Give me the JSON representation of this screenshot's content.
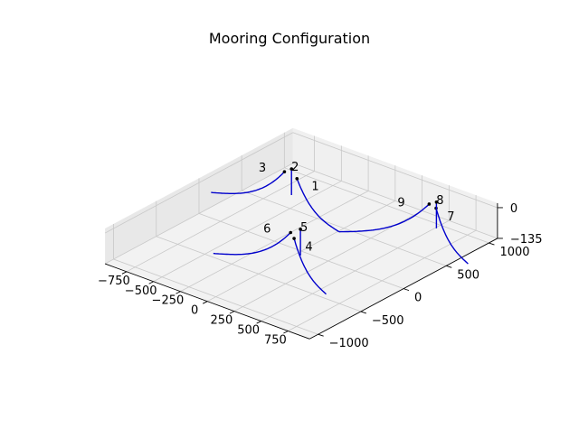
{
  "chart_data": {
    "type": "line",
    "projection": "3d",
    "title": "Mooring Configuration",
    "grid": true,
    "axes": {
      "x": {
        "ticks": [
          -750,
          -500,
          -250,
          0,
          250,
          500,
          750
        ],
        "tick_labels": [
          "−750",
          "−500",
          "−250",
          "0",
          "250",
          "500",
          "750"
        ]
      },
      "y": {
        "ticks": [
          -1000,
          -500,
          0,
          500,
          1000
        ],
        "tick_labels": [
          "−1000",
          "−500",
          "0",
          "500",
          "1000"
        ]
      },
      "z": {
        "ticks": [
          -135,
          0
        ],
        "tick_labels": [
          "−135",
          "0"
        ]
      }
    },
    "series": [
      {
        "label": "1",
        "color": "#0000cc",
        "fairlead": [
          -500,
          580,
          -20
        ],
        "anchor": [
          10,
          430,
          -135
        ]
      },
      {
        "label": "2",
        "color": "#0000cc",
        "fairlead": [
          -630,
          680,
          -20
        ],
        "anchor": [
          -630,
          680,
          -135
        ]
      },
      {
        "label": "3",
        "color": "#0000cc",
        "fairlead": [
          -640,
          610,
          -20
        ],
        "anchor": [
          -1100,
          330,
          -135
        ]
      },
      {
        "label": "4",
        "color": "#0000cc",
        "fairlead": [
          100,
          -210,
          -20
        ],
        "anchor": [
          580,
          -440,
          -135
        ]
      },
      {
        "label": "5",
        "color": "#0000cc",
        "fairlead": [
          40,
          -60,
          -20
        ],
        "anchor": [
          40,
          -60,
          -135
        ]
      },
      {
        "label": "6",
        "color": "#0000cc",
        "fairlead": [
          20,
          -150,
          -20
        ],
        "anchor": [
          -460,
          -450,
          -135
        ]
      },
      {
        "label": "7",
        "color": "#0000cc",
        "fairlead": [
          570,
          860,
          -20
        ],
        "anchor": [
          1050,
          630,
          -135
        ]
      },
      {
        "label": "8",
        "color": "#0000cc",
        "fairlead": [
          510,
          940,
          -20
        ],
        "anchor": [
          510,
          940,
          -135
        ]
      },
      {
        "label": "9",
        "color": "#0000cc",
        "fairlead": [
          490,
          880,
          -20
        ],
        "anchor": [
          10,
          430,
          -135
        ]
      }
    ]
  }
}
